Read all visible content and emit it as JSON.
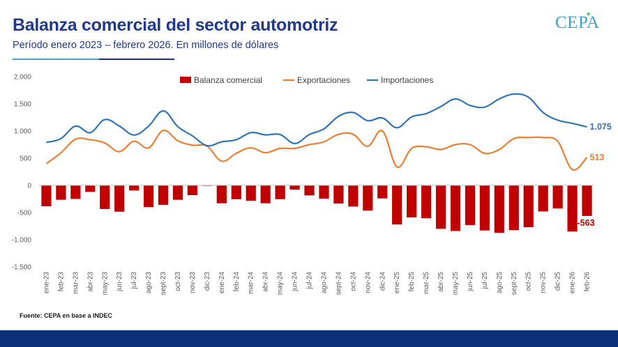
{
  "header": {
    "title": "Balanza comercial del sector automotriz",
    "subtitle": "Período enero 2023 – febrero 2026. En millones de dólares",
    "logo": "CEPA"
  },
  "footer": {
    "source": "Fuente: CEPA en base a INDEC"
  },
  "colors": {
    "balanza": "#c00000",
    "exportaciones": "#ed7d31",
    "importaciones": "#2e75b6",
    "title": "#1f3a8a",
    "footer": "#0b2f78"
  },
  "chart_data": {
    "type": "bar+line",
    "title": "Balanza comercial del sector automotriz",
    "subtitle": "Período enero 2023 – febrero 2026. En millones de dólares",
    "ylim": [
      -1500,
      2000
    ],
    "yticks": [
      2000,
      1500,
      1000,
      500,
      0,
      -500,
      -1000,
      -1500
    ],
    "ytick_labels": [
      "2.000",
      "1.500",
      "1.000",
      "500",
      "0",
      "-500",
      "-1.000",
      "-1.500"
    ],
    "grid": false,
    "legend_position": "top-center",
    "categories": [
      "ene-23",
      "feb-23",
      "mar-23",
      "abr-23",
      "may-23",
      "jun-23",
      "jul-23",
      "ago-23",
      "sept-23",
      "oct-23",
      "nov-23",
      "dic-23",
      "ene-24",
      "feb-24",
      "mar-24",
      "abr-24",
      "may-24",
      "jun-24",
      "jul-24",
      "ago-24",
      "sept-24",
      "oct-24",
      "nov-24",
      "dic-24",
      "ene-25",
      "feb-25",
      "mar-25",
      "abr-25",
      "may-25",
      "jun-25",
      "jul-25",
      "ago-25",
      "sept-25",
      "oct-25",
      "nov-25",
      "dic-25",
      "ene-26",
      "feb-26"
    ],
    "series": [
      {
        "name": "Balanza comercial",
        "kind": "bar",
        "values": [
          -385,
          -265,
          -250,
          -120,
          -435,
          -485,
          -95,
          -400,
          -360,
          -265,
          -180,
          -10,
          -330,
          -255,
          -285,
          -330,
          -255,
          -80,
          -185,
          -245,
          -335,
          -390,
          -465,
          -240,
          -720,
          -590,
          -605,
          -800,
          -840,
          -730,
          -830,
          -875,
          -825,
          -770,
          -480,
          -425,
          -850,
          -563
        ]
      },
      {
        "name": "Exportaciones",
        "kind": "line",
        "values": [
          400,
          600,
          850,
          840,
          780,
          620,
          810,
          690,
          1010,
          820,
          740,
          720,
          445,
          590,
          690,
          600,
          680,
          680,
          750,
          800,
          940,
          940,
          720,
          1000,
          340,
          680,
          710,
          660,
          750,
          750,
          590,
          660,
          860,
          880,
          880,
          810,
          290,
          513
        ]
      },
      {
        "name": "Importaciones",
        "kind": "line",
        "values": [
          790,
          860,
          1090,
          970,
          1210,
          1090,
          925,
          1090,
          1370,
          1080,
          910,
          730,
          800,
          840,
          970,
          930,
          935,
          770,
          935,
          1040,
          1270,
          1340,
          1190,
          1240,
          1060,
          1260,
          1320,
          1450,
          1590,
          1470,
          1440,
          1590,
          1680,
          1620,
          1340,
          1200,
          1140,
          1075
        ]
      }
    ],
    "end_labels": {
      "Balanza comercial": "-563",
      "Exportaciones": "513",
      "Importaciones": "1.075"
    }
  }
}
